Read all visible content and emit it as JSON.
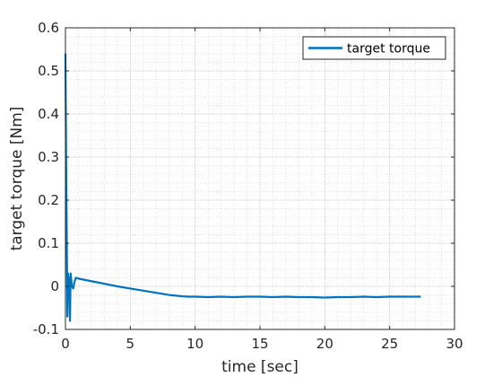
{
  "chart_data": {
    "type": "line",
    "title": "",
    "xlabel": "time [sec]",
    "ylabel": "target torque [Nm]",
    "xlim": [
      0,
      30
    ],
    "ylim": [
      -0.1,
      0.6
    ],
    "xticks": [
      0,
      5,
      10,
      15,
      20,
      25,
      30
    ],
    "yticks": [
      -0.1,
      0,
      0.1,
      0.2,
      0.3,
      0.4,
      0.5,
      0.6
    ],
    "xtick_labels": [
      "0",
      "5",
      "10",
      "15",
      "20",
      "25",
      "30"
    ],
    "ytick_labels": [
      "-0.1",
      "0",
      "0.1",
      "0.2",
      "0.3",
      "0.4",
      "0.5",
      "0.6"
    ],
    "grid": "minor-dotted",
    "legend_position": "top-right",
    "series": [
      {
        "name": "target torque",
        "color": "#0072BD",
        "x": [
          0,
          0.05,
          0.1,
          0.15,
          0.2,
          0.25,
          0.3,
          0.35,
          0.4,
          0.5,
          0.6,
          0.7,
          0.8,
          1.0,
          2.0,
          3.0,
          4.0,
          5.0,
          6.0,
          7.0,
          8.0,
          9.0,
          9.5,
          10.0,
          11.0,
          12.0,
          13.0,
          14.0,
          15.0,
          16.0,
          17.0,
          18.0,
          19.0,
          20.0,
          21.0,
          22.0,
          23.0,
          24.0,
          25.0,
          26.0,
          27.0,
          27.4
        ],
        "y": [
          0.54,
          0.3,
          0.12,
          -0.07,
          0.03,
          -0.01,
          0.02,
          -0.08,
          0.03,
          0.0,
          -0.005,
          0.01,
          0.02,
          0.018,
          0.012,
          0.006,
          0.0,
          -0.005,
          -0.01,
          -0.015,
          -0.02,
          -0.023,
          -0.024,
          -0.024,
          -0.025,
          -0.024,
          -0.025,
          -0.024,
          -0.024,
          -0.025,
          -0.024,
          -0.025,
          -0.025,
          -0.026,
          -0.025,
          -0.025,
          -0.024,
          -0.025,
          -0.024,
          -0.024,
          -0.024,
          -0.024
        ]
      }
    ]
  }
}
